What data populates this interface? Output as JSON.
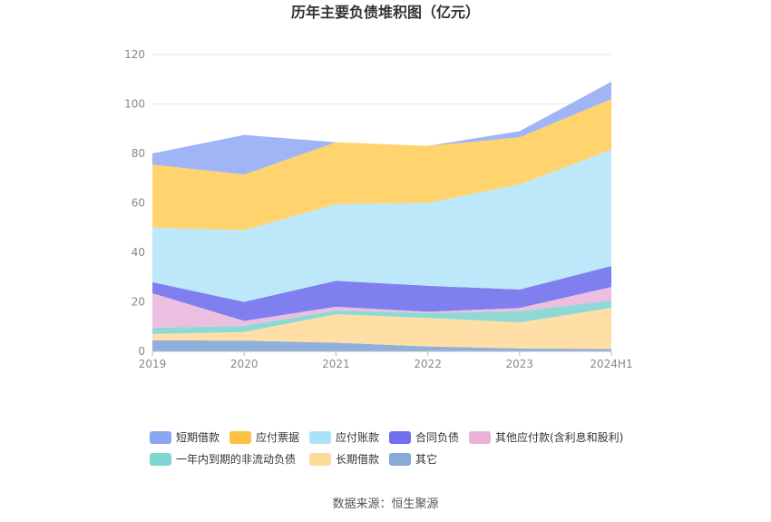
{
  "chart_data": {
    "type": "area",
    "stacked": true,
    "title": "历年主要负债堆积图（亿元）",
    "categories": [
      "2019",
      "2020",
      "2021",
      "2022",
      "2023",
      "2024H1"
    ],
    "ylim": [
      0,
      120
    ],
    "yticks": [
      0,
      20,
      40,
      60,
      80,
      100,
      120
    ],
    "grid": true,
    "legend_position": "bottom",
    "series": [
      {
        "name": "其它",
        "color": "#8fb0dc",
        "values": [
          4.5,
          4.3,
          3.5,
          2.0,
          1.2,
          1.0
        ]
      },
      {
        "name": "长期借款",
        "color": "#ffdfa6",
        "values": [
          2.5,
          3.5,
          11.5,
          11.5,
          10.5,
          16.5
        ]
      },
      {
        "name": "一年内到期的非流动负债",
        "color": "#8ed9d6",
        "values": [
          2.5,
          2.5,
          1.5,
          2.0,
          4.5,
          3.0
        ]
      },
      {
        "name": "其他应付款(含利息和股利)",
        "color": "#ecbfe0",
        "values": [
          14.0,
          2.0,
          1.5,
          0.5,
          1.3,
          5.5
        ]
      },
      {
        "name": "合同负债",
        "color": "#7f7ff0",
        "values": [
          4.5,
          7.7,
          10.5,
          10.5,
          7.5,
          8.5
        ]
      },
      {
        "name": "应付账款",
        "color": "#bde8fa",
        "values": [
          22.0,
          29.0,
          31.0,
          33.5,
          42.5,
          47.0
        ]
      },
      {
        "name": "应付票据",
        "color": "#ffd36e",
        "values": [
          25.5,
          22.5,
          25.0,
          23.0,
          19.0,
          20.5
        ]
      },
      {
        "name": "短期借款",
        "color": "#9fb5f5",
        "values": [
          4.5,
          16.0,
          0.0,
          0.0,
          2.5,
          7.0
        ]
      }
    ],
    "legend": [
      {
        "name": "短期借款",
        "color": "#8aa6f0"
      },
      {
        "name": "应付票据",
        "color": "#fdc143"
      },
      {
        "name": "应付账款",
        "color": "#a9e2fb"
      },
      {
        "name": "合同负债",
        "color": "#6f6ff0"
      },
      {
        "name": "其他应付款(含利息和股利)",
        "color": "#e8b2da"
      },
      {
        "name": "一年内到期的非流动负债",
        "color": "#7fd6d3"
      },
      {
        "name": "长期借款",
        "color": "#ffd99a"
      },
      {
        "name": "其它",
        "color": "#8aa8d8"
      }
    ]
  },
  "source": "数据来源：恒生聚源"
}
